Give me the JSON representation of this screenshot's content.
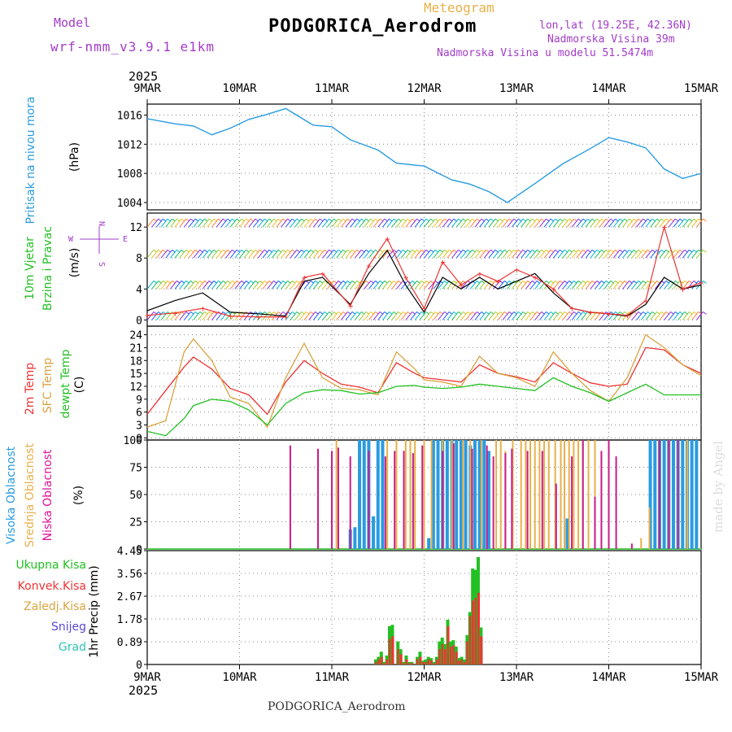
{
  "header": {
    "model_label": "Model",
    "model_name": "wrf-nmm_v3.9.1 e1km",
    "title": "PODGORICA_Aerodrom",
    "product": "Meteogram",
    "lonlat": "lon,lat (19.25E, 42.36N)",
    "altitude": "Nadmorska Visina 39m",
    "model_altitude": "Nadmorska Visina u modelu 51.5474m",
    "footer": "PODGORICA_Aerodrom",
    "watermark": "made by Angel"
  },
  "colors": {
    "purple": "#a23cc9",
    "gold": "#e8b04a",
    "blue": "#2a9be0",
    "green": "#22c022",
    "red": "#ee3333",
    "orange": "#d9a441",
    "magenta": "#c81c8a",
    "pink_label": "#e0109a",
    "dark_green": "#3a7a2a",
    "black": "#000000"
  },
  "chart_data": [
    {
      "type": "line",
      "panel": "pressure",
      "ylabel": [
        "Pritisak na nivou mora",
        "(hPa)"
      ],
      "ylim": [
        1003,
        1017.5
      ],
      "yticks": [
        1004,
        1008,
        1012,
        1016
      ],
      "x": [
        0,
        0.3,
        0.5,
        0.7,
        0.9,
        1.1,
        1.3,
        1.5,
        1.8,
        2.0,
        2.2,
        2.5,
        2.7,
        3.0,
        3.3,
        3.5,
        3.7,
        3.9,
        4.2,
        4.5,
        4.8,
        5.0,
        5.2,
        5.4,
        5.6,
        5.8,
        6.0
      ],
      "series": [
        {
          "name": "Pritisak na nivou mora",
          "color": "#2a9be0",
          "values": [
            1015.5,
            1014.8,
            1014.5,
            1013.3,
            1014.2,
            1015.4,
            1016.1,
            1016.9,
            1014.6,
            1014.4,
            1012.6,
            1011.2,
            1009.4,
            1009.0,
            1007.1,
            1006.5,
            1005.5,
            1004.0,
            1006.6,
            1009.3,
            1011.4,
            1012.9,
            1012.3,
            1011.5,
            1008.6,
            1007.3,
            1008.0
          ]
        }
      ]
    },
    {
      "type": "line",
      "panel": "wind",
      "ylabel": [
        "10m Vjetar",
        "Brzina i Pravac",
        "(m/s)"
      ],
      "ylim": [
        -0.8,
        13.8
      ],
      "yticks": [
        0,
        4,
        8,
        12
      ],
      "compass": [
        "N",
        "W",
        "E",
        "S"
      ],
      "x": [
        0,
        0.3,
        0.6,
        0.9,
        1.2,
        1.5,
        1.7,
        1.9,
        2.2,
        2.4,
        2.6,
        2.8,
        3.0,
        3.2,
        3.4,
        3.6,
        3.8,
        4.0,
        4.2,
        4.4,
        4.6,
        4.8,
        5.0,
        5.2,
        5.4,
        5.6,
        5.8,
        6.0
      ],
      "series": [
        {
          "name": "Brzina",
          "color": "#000000",
          "values": [
            1.2,
            2.5,
            3.5,
            1.0,
            0.8,
            0.5,
            5.0,
            5.5,
            2.0,
            6.0,
            9.0,
            4.5,
            1.0,
            5.5,
            4.0,
            5.5,
            4.0,
            5.0,
            6.0,
            3.5,
            1.5,
            1.0,
            0.8,
            0.5,
            2.0,
            5.5,
            4.0,
            4.5
          ]
        },
        {
          "name": "Udari",
          "color": "#ee3333",
          "values": [
            0.6,
            0.9,
            1.5,
            0.5,
            0.4,
            0.4,
            5.5,
            6.0,
            1.8,
            7.0,
            10.5,
            5.5,
            1.5,
            7.5,
            4.5,
            6.0,
            5.0,
            6.5,
            5.5,
            4.0,
            1.5,
            1.0,
            0.8,
            0.6,
            2.5,
            12.0,
            4.0,
            4.8
          ]
        }
      ]
    },
    {
      "type": "line",
      "panel": "temperature",
      "ylabel": [
        "2m Temp",
        "SFC Temp",
        "dewpt Temp",
        "(C)"
      ],
      "ylim": [
        -0.5,
        26
      ],
      "yticks": [
        0,
        3,
        6,
        9,
        12,
        15,
        18,
        21,
        24
      ],
      "x": [
        0,
        0.2,
        0.4,
        0.5,
        0.7,
        0.9,
        1.1,
        1.3,
        1.5,
        1.7,
        1.9,
        2.1,
        2.3,
        2.5,
        2.7,
        2.9,
        3.0,
        3.2,
        3.4,
        3.6,
        3.8,
        4.0,
        4.2,
        4.4,
        4.6,
        4.8,
        5.0,
        5.2,
        5.4,
        5.6,
        5.8,
        6.0
      ],
      "series": [
        {
          "name": "2m Temp",
          "color": "#ee3333",
          "values": [
            5.5,
            11.0,
            16.5,
            18.8,
            16.0,
            11.5,
            10.0,
            5.5,
            13.0,
            18.0,
            15.0,
            12.5,
            11.8,
            10.5,
            17.5,
            15.0,
            14.0,
            13.5,
            13.0,
            17.0,
            15.0,
            14.2,
            13.0,
            17.5,
            15.0,
            12.8,
            12.0,
            12.5,
            21.0,
            20.5,
            17.0,
            15.0
          ]
        },
        {
          "name": "SFC Temp",
          "color": "#d9a441",
          "values": [
            2.5,
            4.0,
            20.0,
            23.0,
            18.0,
            9.5,
            8.0,
            2.5,
            14.0,
            22.0,
            14.0,
            11.5,
            11.2,
            10.0,
            20.0,
            16.0,
            13.5,
            13.0,
            12.0,
            19.0,
            15.0,
            14.0,
            12.0,
            20.0,
            15.0,
            11.0,
            8.5,
            14.0,
            24.0,
            21.0,
            17.0,
            14.5
          ]
        },
        {
          "name": "dewpt Temp",
          "color": "#22c022",
          "values": [
            1.5,
            0.5,
            4.5,
            7.5,
            9.0,
            8.5,
            6.5,
            3.0,
            8.0,
            10.5,
            11.2,
            11.0,
            10.2,
            10.5,
            12.0,
            12.2,
            11.8,
            11.5,
            11.8,
            12.5,
            12.0,
            11.5,
            11.0,
            14.0,
            12.0,
            10.5,
            8.5,
            10.5,
            12.5,
            10.0,
            10.0,
            10.0
          ]
        }
      ]
    },
    {
      "type": "bar",
      "panel": "cloud",
      "ylabel": [
        "Visoka Oblacnost",
        "Srednja Oblacnost",
        "Niska Oblacnost",
        "(%)"
      ],
      "ylim": [
        0,
        100
      ],
      "yticks": [
        0,
        25,
        50,
        75,
        100
      ],
      "series": [
        {
          "name": "Visoka Oblacnost",
          "color": "#2a9be0",
          "x": [
            2.2,
            2.25,
            2.3,
            2.35,
            2.4,
            2.45,
            2.5,
            2.55,
            3.05,
            3.1,
            3.15,
            3.2,
            3.25,
            3.3,
            3.35,
            3.4,
            3.45,
            3.5,
            3.55,
            3.6,
            3.65,
            3.7,
            4.55,
            5.45,
            5.5,
            5.55,
            5.6,
            5.65,
            5.7,
            5.75,
            5.8,
            5.85,
            5.9,
            5.95
          ],
          "values": [
            18,
            20,
            100,
            100,
            100,
            30,
            100,
            100,
            10,
            100,
            100,
            100,
            100,
            100,
            100,
            100,
            100,
            95,
            100,
            100,
            100,
            90,
            28,
            100,
            100,
            100,
            100,
            100,
            100,
            100,
            100,
            100,
            100,
            100
          ]
        },
        {
          "name": "Srednja Oblacnost",
          "color": "#e8b04a",
          "x": [
            2.05,
            2.6,
            2.7,
            2.8,
            2.85,
            2.9,
            3.0,
            3.08,
            3.2,
            3.3,
            3.42,
            3.5,
            3.62,
            3.78,
            3.83,
            3.88,
            3.96,
            4.05,
            4.1,
            4.15,
            4.2,
            4.25,
            4.3,
            4.35,
            4.42,
            4.48,
            4.52,
            4.57,
            4.62,
            4.67,
            4.72,
            4.78,
            4.85,
            5.35,
            5.44,
            5.55,
            5.65,
            5.75,
            5.85
          ],
          "values": [
            100,
            100,
            100,
            100,
            100,
            100,
            100,
            100,
            100,
            100,
            100,
            100,
            100,
            100,
            100,
            90,
            100,
            100,
            100,
            100,
            100,
            100,
            100,
            100,
            100,
            100,
            100,
            100,
            100,
            100,
            100,
            100,
            100,
            10,
            38,
            100,
            100,
            100,
            100
          ]
        },
        {
          "name": "Niska Oblacnost",
          "color": "#c81c8a",
          "x": [
            1.55,
            1.85,
            2.0,
            2.07,
            2.2,
            2.4,
            2.58,
            2.68,
            2.78,
            2.88,
            2.98,
            3.2,
            3.32,
            3.52,
            3.68,
            3.75,
            3.88,
            3.95,
            4.12,
            4.28,
            4.43,
            4.6,
            4.72,
            4.85,
            4.92,
            5.0,
            5.08,
            5.25,
            5.55,
            5.65,
            5.75
          ],
          "values": [
            95,
            92,
            90,
            93,
            85,
            90,
            85,
            90,
            90,
            88,
            95,
            90,
            97,
            92,
            95,
            85,
            88,
            92,
            90,
            90,
            60,
            85,
            100,
            48,
            90,
            100,
            85,
            5,
            100,
            100,
            100
          ]
        }
      ]
    },
    {
      "type": "bar",
      "panel": "precipitation",
      "ylabel": [
        "Ukupna Kisa",
        "Konvek.Kisa",
        "Zaledj.Kisa",
        "Snijeg",
        "Grad",
        "1hr Precip (mm)"
      ],
      "ylim": [
        0,
        4.45
      ],
      "yticks": [
        0,
        0.89,
        1.78,
        2.67,
        3.56,
        4.45
      ],
      "x": [
        2.48,
        2.51,
        2.54,
        2.57,
        2.6,
        2.63,
        2.66,
        2.72,
        2.75,
        2.78,
        2.81,
        2.84,
        2.87,
        2.93,
        2.96,
        2.99,
        3.02,
        3.05,
        3.08,
        3.11,
        3.14,
        3.17,
        3.2,
        3.23,
        3.26,
        3.29,
        3.32,
        3.35,
        3.38,
        3.41,
        3.44,
        3.47,
        3.5,
        3.53,
        3.56,
        3.59,
        3.62,
        3.65,
        3.68,
        3.71,
        3.74,
        3.77,
        3.8,
        3.83,
        3.86,
        3.89,
        3.92,
        3.95,
        3.98,
        4.01,
        4.04,
        4.07,
        4.1,
        4.13,
        4.16,
        4.19,
        4.22,
        4.25,
        4.28,
        4.31,
        4.34,
        4.37,
        4.4,
        4.43,
        4.46,
        4.49,
        4.52,
        4.55,
        4.58,
        4.61,
        4.64,
        4.67,
        4.7,
        4.73,
        4.76,
        4.79,
        4.82,
        4.85,
        4.88,
        4.91,
        4.94,
        4.97,
        5.0
      ],
      "series": [
        {
          "name": "Ukupna Kisa",
          "color": "#22c022",
          "values": [
            0.2,
            0.3,
            0.5,
            0.1,
            0.35,
            1.5,
            1.55,
            0.9,
            0.6,
            0.1,
            0.35,
            0.1,
            0.1,
            0.3,
            0.5,
            0.15,
            0.2,
            0.3,
            0.25,
            0.1,
            0.3,
            0.9,
            1.05,
            0.8,
            1.75,
            0.9,
            0.95,
            0.7,
            0.25,
            0.3,
            0.2,
            1.15,
            2.05,
            3.75,
            3.7,
            4.2,
            1.45,
            0.0,
            0.0,
            0.0,
            0.0,
            0.0,
            0.0,
            0.0,
            0.0,
            0.0,
            0.0,
            0.0,
            0.0,
            0.0,
            0.0,
            0.0,
            0.0,
            0.0,
            0.0,
            0.0,
            0.0,
            0.0,
            0.0,
            0.0,
            0.0,
            0.0,
            0.0,
            0.0,
            0.0,
            0.0,
            0.0,
            0.0,
            0.0,
            0.0,
            0.0,
            0.0,
            0.0,
            0.0,
            0.0,
            0.0,
            0.0,
            0.0,
            0.0,
            0.0,
            0.0,
            0.0,
            0.0
          ]
        },
        {
          "name": "Konvek.Kisa",
          "color": "#ee3333",
          "values": [
            0.1,
            0.2,
            0.3,
            0.05,
            0.2,
            1.0,
            1.1,
            0.6,
            0.4,
            0.05,
            0.2,
            0.05,
            0.05,
            0.2,
            0.3,
            0.1,
            0.1,
            0.2,
            0.15,
            0.05,
            0.2,
            0.6,
            0.8,
            0.6,
            1.5,
            0.7,
            0.75,
            0.5,
            0.15,
            0.2,
            0.1,
            0.9,
            1.9,
            2.5,
            2.6,
            2.8,
            1.1,
            0.0,
            0.0,
            0.0,
            0.0,
            0.0,
            0.0,
            0.0,
            0.0,
            0.0,
            0.0,
            0.0,
            0.0,
            0.0,
            0.0,
            0.0,
            0.0,
            0.0,
            0.0,
            0.0,
            0.0,
            0.0,
            0.0,
            0.0,
            0.0,
            0.0,
            0.0,
            0.0,
            0.0,
            0.0,
            0.0,
            0.0,
            0.0,
            0.0,
            0.0,
            0.0,
            0.0,
            0.0,
            0.0,
            0.0,
            0.0,
            0.0,
            0.0,
            0.0,
            0.0,
            0.0,
            0.0
          ]
        }
      ]
    }
  ],
  "x_axis": {
    "ticks": [
      "9MAR",
      "10MAR",
      "11MAR",
      "12MAR",
      "13MAR",
      "14MAR",
      "15MAR"
    ],
    "year": "2025"
  }
}
